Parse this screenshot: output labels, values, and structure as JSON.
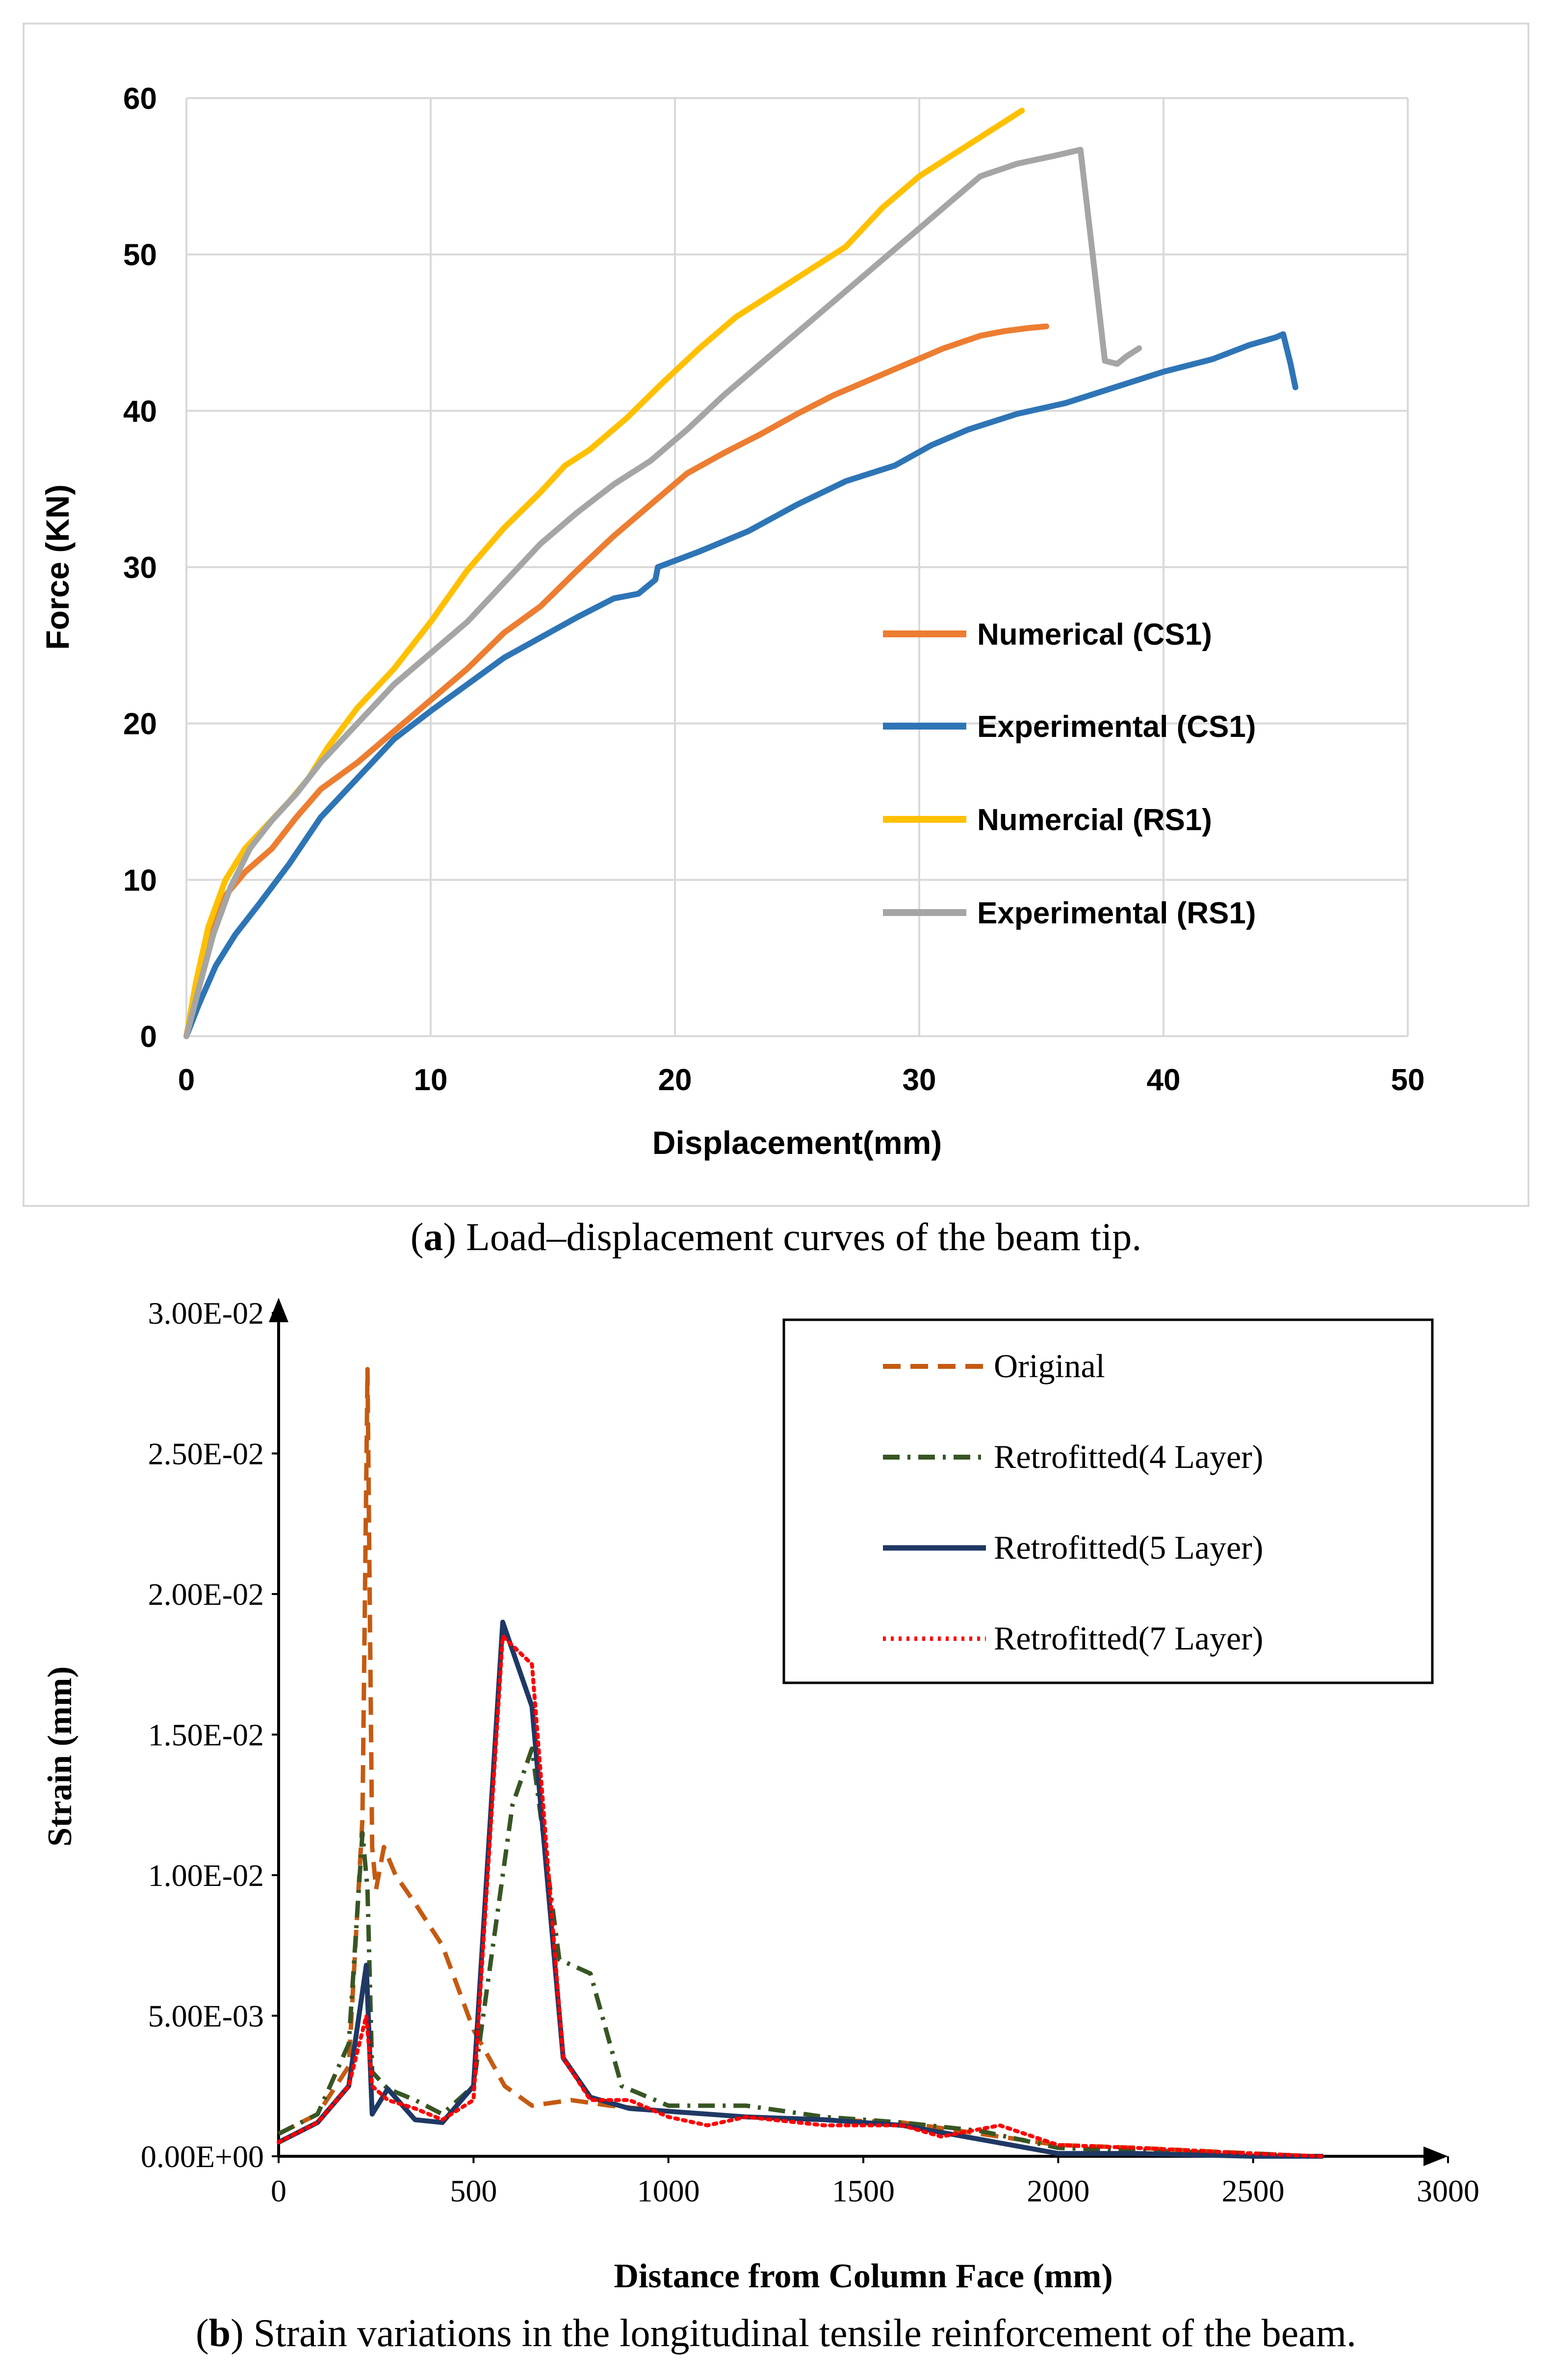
{
  "chart_data": [
    {
      "type": "line",
      "panel": "a",
      "xlabel": "Displacement(mm)",
      "ylabel": "Force (KN)",
      "xlim": [
        0,
        50
      ],
      "ylim": [
        0,
        60
      ],
      "xticks": [
        "0",
        "10",
        "20",
        "30",
        "40",
        "50"
      ],
      "yticks": [
        "0",
        "10",
        "20",
        "30",
        "40",
        "50",
        "60"
      ],
      "grid": true,
      "legend": "center-right",
      "caption_prefix": "(",
      "caption_letter": "a",
      "caption_text": ") Load–displacement curves of the beam tip.",
      "series": [
        {
          "name": "Numerical (CS1)",
          "color": "#ED7D31",
          "x": [
            0,
            0.4,
            0.9,
            1.6,
            2.4,
            3.5,
            4.5,
            5.5,
            7,
            8.5,
            10,
            11.5,
            13,
            14.5,
            16,
            17.5,
            19,
            20.5,
            22,
            23.5,
            25,
            26.5,
            28,
            29.5,
            31,
            32.5,
            33.5,
            34.5,
            35.2
          ],
          "y": [
            0,
            3.5,
            6.5,
            9,
            10.5,
            12,
            14,
            15.8,
            17.5,
            19.5,
            21.5,
            23.5,
            25.8,
            27.5,
            29.8,
            32,
            34,
            36,
            37.3,
            38.5,
            39.8,
            41,
            42,
            43,
            44,
            44.8,
            45.1,
            45.3,
            45.4
          ]
        },
        {
          "name": "Experimental (CS1)",
          "color": "#2E75B6",
          "x": [
            0,
            0.5,
            1.2,
            2,
            3,
            4.2,
            5.5,
            7,
            8.5,
            10,
            11.5,
            13,
            14.5,
            16,
            17.5,
            18.5,
            19.2,
            19.3,
            21,
            23,
            25,
            27,
            29,
            30.5,
            32,
            34,
            36,
            38,
            40,
            42,
            43.5,
            44.6,
            44.9,
            45.2,
            45.4
          ],
          "y": [
            0,
            2,
            4.5,
            6.5,
            8.5,
            11,
            14,
            16.5,
            19,
            20.8,
            22.5,
            24.2,
            25.5,
            26.8,
            28,
            28.3,
            29.2,
            30,
            31,
            32.3,
            34,
            35.5,
            36.5,
            37.8,
            38.8,
            39.8,
            40.5,
            41.5,
            42.5,
            43.3,
            44.2,
            44.7,
            44.9,
            43,
            41.5
          ]
        },
        {
          "name": "Numercial (RS1)",
          "color": "#FFC000",
          "x": [
            0,
            0.4,
            0.9,
            1.6,
            2.4,
            3.3,
            4.2,
            5,
            5.8,
            7,
            8.5,
            10,
            11.5,
            13,
            14.5,
            15.5,
            16.5,
            18,
            19.5,
            21,
            22.5,
            24,
            25.5,
            27,
            28.5,
            30,
            31.5,
            33,
            34.2
          ],
          "y": [
            0,
            3.5,
            7,
            10,
            12,
            13.5,
            15,
            16.5,
            18.5,
            21,
            23.5,
            26.5,
            29.8,
            32.5,
            34.8,
            36.5,
            37.5,
            39.5,
            41.8,
            44,
            46,
            47.5,
            49,
            50.5,
            53,
            55,
            56.5,
            58,
            59.2
          ]
        },
        {
          "name": "Experimental (RS1)",
          "color": "#A5A5A5",
          "x": [
            0,
            0.5,
            1.1,
            1.8,
            2.6,
            3.5,
            4.5,
            5.5,
            7,
            8.5,
            10,
            11.5,
            13,
            14.5,
            16,
            17.5,
            19,
            20.5,
            22,
            23.5,
            25,
            26.5,
            28,
            29.5,
            31,
            32.5,
            34,
            35.5,
            36.6,
            37.1,
            37.6,
            38.1,
            38.5,
            39
          ],
          "y": [
            0,
            3,
            6.5,
            9.5,
            12,
            13.8,
            15.5,
            17.5,
            20,
            22.5,
            24.5,
            26.5,
            29,
            31.5,
            33.5,
            35.3,
            36.8,
            38.8,
            41,
            43,
            45,
            47,
            49,
            51,
            53,
            55,
            55.8,
            56.3,
            56.7,
            50,
            43.2,
            43,
            43.5,
            44
          ]
        }
      ]
    },
    {
      "type": "line",
      "panel": "b",
      "xlabel": "Distance from Column Face (mm)",
      "ylabel": "Strain (mm)",
      "xlim": [
        0,
        3000
      ],
      "ylim": [
        0,
        0.03
      ],
      "xticks": [
        "0",
        "500",
        "1000",
        "1500",
        "2000",
        "2500",
        "3000"
      ],
      "yticks": [
        "0.00E+00",
        "5.00E-03",
        "1.00E-02",
        "1.50E-02",
        "2.00E-02",
        "2.50E-02",
        "3.00E-02"
      ],
      "grid": false,
      "legend": "top-right",
      "caption_prefix": "(",
      "caption_letter": "b",
      "caption_text": ") Strain variations in the longitudinal tensile reinforcement of the beam.",
      "series": [
        {
          "name": "Original",
          "color": "#C55A11",
          "dash": "dashed",
          "x": [
            0,
            100,
            180,
            215,
            228,
            240,
            250,
            270,
            300,
            350,
            420,
            500,
            580,
            650,
            750,
            850,
            1000,
            1200,
            1400,
            1600,
            1800,
            2000,
            2200,
            2500,
            2650
          ],
          "y": [
            0.0008,
            0.0015,
            0.0032,
            0.012,
            0.028,
            0.011,
            0.0095,
            0.011,
            0.01,
            0.009,
            0.0075,
            0.0045,
            0.0025,
            0.0018,
            0.002,
            0.0018,
            0.0016,
            0.0014,
            0.0013,
            0.0012,
            0.0008,
            0.0004,
            0.0003,
            0.0001,
            0.0
          ]
        },
        {
          "name": "Retrofitted(4 Layer)",
          "color": "#375623",
          "dash": "dashdot",
          "x": [
            0,
            100,
            180,
            215,
            228,
            240,
            280,
            350,
            420,
            500,
            560,
            600,
            650,
            720,
            800,
            880,
            1000,
            1200,
            1400,
            1600,
            1800,
            2000,
            2200,
            2500,
            2650
          ],
          "y": [
            0.0008,
            0.0015,
            0.004,
            0.0115,
            0.0095,
            0.003,
            0.0024,
            0.002,
            0.0015,
            0.0025,
            0.0085,
            0.0125,
            0.0145,
            0.007,
            0.0065,
            0.0025,
            0.0018,
            0.0018,
            0.0014,
            0.0012,
            0.0009,
            0.0003,
            0.0002,
            0.0001,
            0.0
          ]
        },
        {
          "name": "Retrofitted(5 Layer)",
          "color": "#1F3864",
          "dash": "solid",
          "x": [
            0,
            100,
            180,
            225,
            240,
            280,
            350,
            420,
            500,
            575,
            650,
            730,
            800,
            900,
            1000,
            1200,
            1400,
            1600,
            1800,
            2000,
            2200,
            2500,
            2680
          ],
          "y": [
            0.0005,
            0.0012,
            0.0025,
            0.0068,
            0.0015,
            0.0024,
            0.0013,
            0.0012,
            0.0025,
            0.019,
            0.016,
            0.0035,
            0.0021,
            0.0017,
            0.0016,
            0.0014,
            0.0013,
            0.0011,
            0.0006,
            0.0001,
            0.0001,
            0.0,
            0.0
          ]
        },
        {
          "name": "Retrofitted(7 Layer)",
          "color": "#FF0000",
          "dash": "dotted",
          "x": [
            0,
            100,
            180,
            225,
            240,
            280,
            350,
            420,
            500,
            575,
            650,
            730,
            800,
            900,
            1000,
            1100,
            1200,
            1400,
            1600,
            1700,
            1850,
            2000,
            2200,
            2500,
            2680
          ],
          "y": [
            0.0005,
            0.0012,
            0.0025,
            0.005,
            0.0025,
            0.002,
            0.0017,
            0.0013,
            0.002,
            0.0185,
            0.0175,
            0.0035,
            0.002,
            0.002,
            0.0014,
            0.0011,
            0.0014,
            0.0011,
            0.0011,
            0.0007,
            0.0011,
            0.0004,
            0.0003,
            0.0001,
            0.0
          ]
        }
      ]
    }
  ]
}
